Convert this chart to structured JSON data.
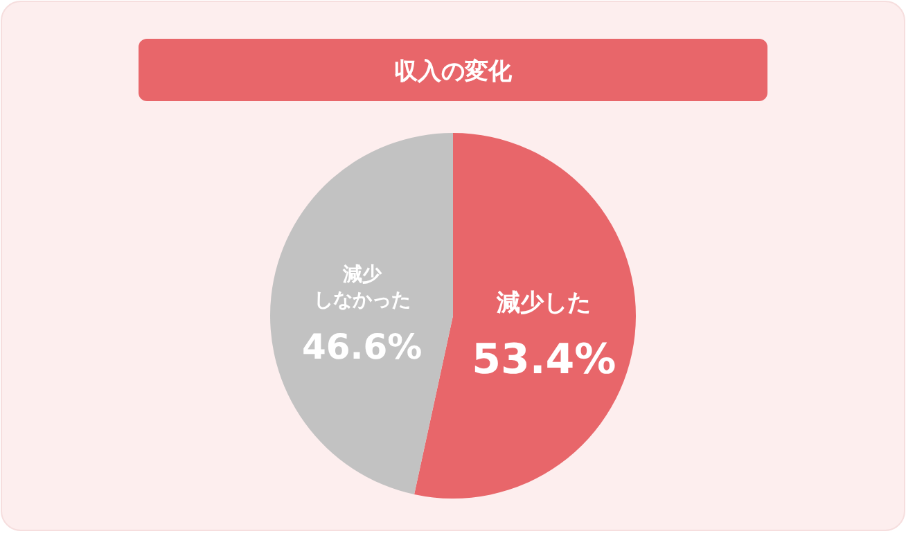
{
  "chart_data": {
    "type": "pie",
    "title": "収入の変化",
    "categories": [
      "減少した",
      "減少しなかった"
    ],
    "values": [
      53.4,
      46.6
    ],
    "value_labels": [
      "53.4%",
      "46.6%"
    ],
    "colors": [
      "#e8666a",
      "#c2c2c2"
    ]
  }
}
